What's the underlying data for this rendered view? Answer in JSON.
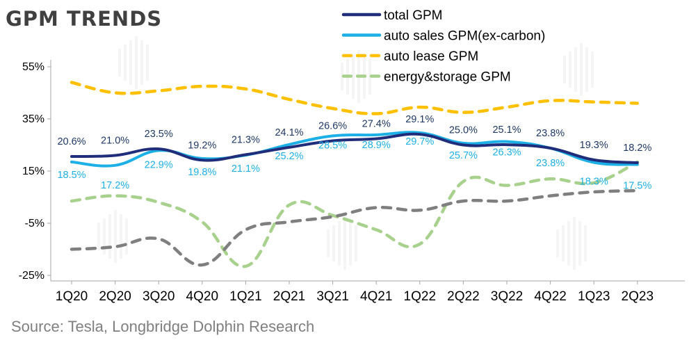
{
  "title": "GPM TRENDS",
  "source": "Source: Tesla, Longbridge Dolphin Research",
  "chart_data": {
    "type": "line",
    "categories": [
      "1Q20",
      "2Q20",
      "3Q20",
      "4Q20",
      "1Q21",
      "2Q21",
      "3Q21",
      "4Q21",
      "1Q22",
      "2Q22",
      "3Q22",
      "4Q22",
      "1Q23",
      "2Q23"
    ],
    "ylim": [
      -25,
      55
    ],
    "yticks": [
      55,
      35,
      15,
      -5,
      -25
    ],
    "ytick_labels": [
      "55%",
      "35%",
      "15%",
      "-5%",
      "-25%"
    ],
    "grid": false,
    "legend_position": "top-right",
    "series": [
      {
        "name": "total GPM",
        "color": "#1f2d7a",
        "dash": "solid",
        "values": [
          20.6,
          21.0,
          23.5,
          19.2,
          21.3,
          24.1,
          26.6,
          27.4,
          29.1,
          25.0,
          25.1,
          23.8,
          19.3,
          18.2
        ],
        "labels": [
          "20.6%",
          "21.0%",
          "23.5%",
          "19.2%",
          "21.3%",
          "24.1%",
          "26.6%",
          "27.4%",
          "29.1%",
          "25.0%",
          "25.1%",
          "23.8%",
          "19.3%",
          "18.2%"
        ],
        "label_position": "above",
        "label_color": "#1f3864"
      },
      {
        "name": "auto sales GPM(ex-carbon)",
        "color": "#1cb0e6",
        "dash": "solid",
        "values": [
          18.5,
          17.2,
          22.9,
          19.8,
          21.1,
          25.2,
          28.5,
          28.9,
          29.7,
          25.7,
          26.3,
          23.8,
          18.3,
          17.5
        ],
        "labels": [
          "18.5%",
          "17.2%",
          "22.9%",
          "19.8%",
          "21.1%",
          "25.2%",
          "28.5%",
          "28.9%",
          "29.7%",
          "25.7%",
          "26.3%",
          "23.8%",
          "18.3%",
          "17.5%"
        ],
        "label_position": "below",
        "label_color": "#1cb0e6"
      },
      {
        "name": "auto lease GPM",
        "color": "#ffc000",
        "dash": "dashed",
        "values": [
          49.0,
          45.0,
          45.8,
          47.5,
          46.5,
          42.5,
          39.0,
          37.0,
          39.5,
          37.5,
          39.5,
          42.0,
          41.5,
          41.0
        ],
        "labels": [],
        "label_position": "none",
        "label_color": "#ffc000"
      },
      {
        "name": "energy&storage GPM",
        "color": "#a9d18e",
        "dash": "dashed",
        "values": [
          3.5,
          5.5,
          3.0,
          -4.5,
          -21.5,
          2.0,
          -2.0,
          -7.5,
          -13.0,
          11.0,
          9.5,
          12.0,
          10.5,
          18.5
        ],
        "labels": [],
        "label_position": "none",
        "label_color": "#a9d18e"
      },
      {
        "name": "",
        "color": "#7f7f7f",
        "dash": "dashed",
        "values": [
          -15.0,
          -14.0,
          -11.0,
          -21.0,
          -7.5,
          -4.5,
          -2.5,
          1.0,
          0.0,
          3.5,
          3.5,
          5.5,
          7.0,
          7.5
        ],
        "labels": [],
        "label_position": "none",
        "label_color": "#7f7f7f"
      }
    ]
  }
}
